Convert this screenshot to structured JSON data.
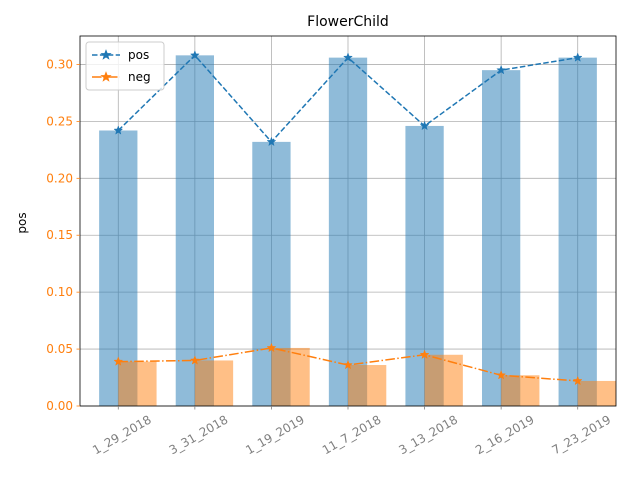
{
  "chart_data": {
    "type": "bar",
    "title": "FlowerChild",
    "xlabel": "",
    "ylabel": "pos",
    "ylim": [
      0,
      0.325
    ],
    "yticks": [
      "0.00",
      "0.05",
      "0.10",
      "0.15",
      "0.20",
      "0.25",
      "0.30"
    ],
    "categories": [
      "1_29_2018",
      "3_31_2018",
      "1_19_2019",
      "11_7_2018",
      "3_13_2018",
      "2_16_2019",
      "7_23_2019"
    ],
    "grid": true,
    "legend_position": "top-left",
    "series": [
      {
        "name": "pos",
        "values": [
          0.242,
          0.308,
          0.232,
          0.306,
          0.246,
          0.295,
          0.306
        ],
        "color": "#1f77b4",
        "line_style": "dashed",
        "marker": "star"
      },
      {
        "name": "neg",
        "values": [
          0.039,
          0.04,
          0.051,
          0.036,
          0.045,
          0.027,
          0.022
        ],
        "color": "#ff7f0e",
        "line_style": "dash-dot",
        "marker": "star"
      }
    ],
    "ytick_color": "#ff7f0e",
    "xtick_color": "#7f7f7f"
  }
}
